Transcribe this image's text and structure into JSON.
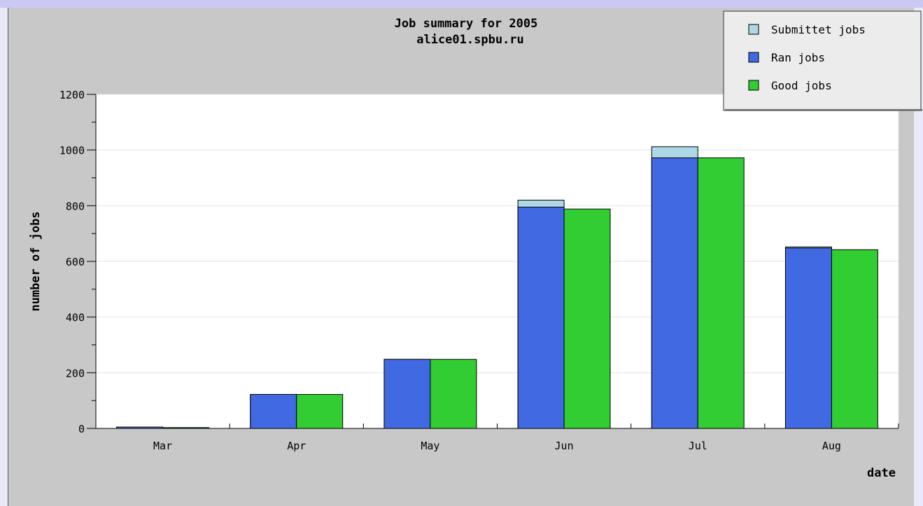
{
  "chart_data": {
    "type": "bar",
    "title": "Job summary for 2005",
    "subtitle": "alice01.spbu.ru",
    "xlabel": "date",
    "ylabel": "number of jobs",
    "ylim": [
      0,
      1200
    ],
    "yticks": [
      0,
      200,
      400,
      600,
      800,
      1000,
      1200
    ],
    "grid": true,
    "legend_position": "top-right",
    "categories": [
      "Mar",
      "Apr",
      "May",
      "Jun",
      "Jul",
      "Aug"
    ],
    "series": [
      {
        "name": "Submittet jobs",
        "color": "#add8e6",
        "values": [
          5,
          122,
          248,
          820,
          1012,
          652
        ]
      },
      {
        "name": "Ran jobs",
        "color": "#4169e1",
        "values": [
          5,
          122,
          248,
          795,
          972,
          648
        ]
      },
      {
        "name": "Good jobs",
        "color": "#32cd32",
        "values": [
          3,
          122,
          248,
          788,
          972,
          642
        ]
      }
    ]
  }
}
